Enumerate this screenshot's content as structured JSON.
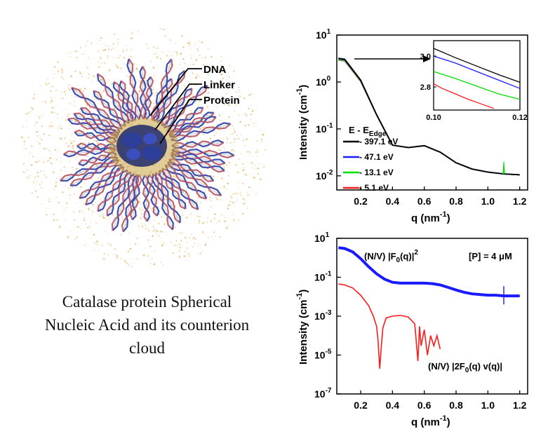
{
  "illustration": {
    "labels": [
      "DNA",
      "Linker",
      "Protein"
    ]
  },
  "caption": [
    "Catalase protein Spherical",
    "Nucleic Acid and its counterion",
    "cloud"
  ],
  "colors": {
    "black": "#000000",
    "blue": "#1a1aff",
    "green": "#00dd00",
    "red": "#ff1a1a",
    "dna_blue": "#3a4fb0",
    "dna_red": "#b24a5a",
    "ions": "#e8b25a",
    "protein": "#1f2a6b"
  },
  "chart_data": [
    {
      "type": "line",
      "xlabel": "q (nm-1)",
      "ylabel": "Intensity (cm-1)",
      "xscale": "linear",
      "yscale": "log",
      "xlim": [
        0.05,
        1.25
      ],
      "ylim": [
        0.005,
        10
      ],
      "xticks": [
        "0.2",
        "0.4",
        "0.6",
        "0.8",
        "1.0",
        "1.2"
      ],
      "yticks": [
        "10-2",
        "10-1",
        "100",
        "101"
      ],
      "legend_title": "E - EEdge",
      "legend_position": "bottom-left",
      "series": [
        {
          "name": "- 397.1 eV",
          "color": "#000000",
          "x": [
            0.06,
            0.1,
            0.2,
            0.3,
            0.4,
            0.5,
            0.6,
            0.7,
            0.8,
            0.9,
            1.0,
            1.1,
            1.2
          ],
          "y": [
            3.2,
            3.05,
            1.1,
            0.2,
            0.045,
            0.04,
            0.044,
            0.032,
            0.019,
            0.014,
            0.012,
            0.011,
            0.0105
          ]
        },
        {
          "name": "- 47.1 eV",
          "color": "#1a1aff",
          "x": [
            0.06,
            0.1,
            0.2,
            0.3,
            0.4,
            0.5,
            0.6,
            0.7,
            0.8,
            0.9,
            1.0,
            1.1,
            1.2
          ],
          "y": [
            3.15,
            2.98,
            1.08,
            0.2,
            0.045,
            0.04,
            0.044,
            0.032,
            0.019,
            0.014,
            0.012,
            0.011,
            0.0105
          ]
        },
        {
          "name": "- 13.1 eV",
          "color": "#00dd00",
          "x": [
            0.06,
            0.1,
            0.2,
            0.3,
            0.4,
            0.5,
            0.6,
            0.7,
            0.8,
            0.9,
            1.0,
            1.1,
            1.2
          ],
          "y": [
            3.0,
            2.88,
            1.05,
            0.2,
            0.045,
            0.04,
            0.044,
            0.032,
            0.019,
            0.014,
            0.012,
            0.011,
            0.0105
          ]
        },
        {
          "name": "- 5.1 eV",
          "color": "#ff1a1a",
          "x": [
            0.06,
            0.1,
            0.2,
            0.3,
            0.4,
            0.5,
            0.6,
            0.7,
            0.8,
            0.9,
            1.0,
            1.1,
            1.2
          ],
          "y": [
            2.95,
            2.82,
            1.03,
            0.2,
            0.045,
            0.04,
            0.044,
            0.032,
            0.019,
            0.014,
            0.012,
            0.011,
            0.0105
          ]
        }
      ],
      "inset": {
        "xlim": [
          0.1,
          0.12
        ],
        "ylim": [
          2.65,
          3.1
        ],
        "xticks": [
          "0.10",
          "0.12"
        ],
        "yticks": [
          "2.8",
          "3.0"
        ],
        "series": [
          {
            "name": "- 397.1 eV",
            "x": [
              0.1,
              0.105,
              0.11,
              0.115,
              0.12
            ],
            "y": [
              3.05,
              2.99,
              2.935,
              2.88,
              2.83
            ]
          },
          {
            "name": "- 47.1 eV",
            "x": [
              0.1,
              0.105,
              0.11,
              0.115,
              0.12
            ],
            "y": [
              3.0,
              2.955,
              2.9,
              2.845,
              2.79
            ]
          },
          {
            "name": "- 13.1 eV",
            "x": [
              0.1,
              0.105,
              0.11,
              0.115,
              0.12
            ],
            "y": [
              2.9,
              2.855,
              2.805,
              2.755,
              2.72
            ]
          },
          {
            "name": "- 5.1 eV",
            "x": [
              0.1,
              0.102,
              0.105,
              0.108,
              0.111,
              0.114
            ],
            "y": [
              2.82,
              2.79,
              2.755,
              2.72,
              2.69,
              2.66
            ]
          }
        ]
      }
    },
    {
      "type": "line",
      "xlabel": "q (nm-1)",
      "ylabel": "Intensity (cm-1)",
      "xscale": "linear",
      "yscale": "log",
      "xlim": [
        0.05,
        1.25
      ],
      "ylim": [
        1e-07,
        10
      ],
      "xticks": [
        "0.2",
        "0.4",
        "0.6",
        "0.8",
        "1.0",
        "1.2"
      ],
      "yticks": [
        "10-7",
        "10-5",
        "10-3",
        "10-1",
        "101"
      ],
      "annotation": "[P] = 4 μM",
      "series": [
        {
          "name": "(N/V) |F0(q)|2",
          "color": "#1a1aff",
          "x": [
            0.06,
            0.1,
            0.15,
            0.2,
            0.25,
            0.3,
            0.35,
            0.4,
            0.45,
            0.5,
            0.55,
            0.6,
            0.65,
            0.7,
            0.75,
            0.8,
            0.85,
            0.9,
            0.95,
            1.0,
            1.05,
            1.1,
            1.15,
            1.2
          ],
          "y": [
            3.3,
            3.0,
            2.0,
            0.9,
            0.35,
            0.15,
            0.08,
            0.055,
            0.05,
            0.05,
            0.05,
            0.05,
            0.047,
            0.04,
            0.03,
            0.022,
            0.017,
            0.014,
            0.013,
            0.012,
            0.012,
            0.011,
            0.011,
            0.011
          ]
        },
        {
          "name": "(N/V) |2F0(q) v(q)|",
          "color": "#ff1a1a",
          "x": [
            0.06,
            0.1,
            0.15,
            0.2,
            0.25,
            0.28,
            0.3,
            0.31,
            0.32,
            0.33,
            0.34,
            0.36,
            0.4,
            0.45,
            0.5,
            0.54,
            0.56,
            0.57,
            0.58,
            0.6,
            0.62,
            0.64,
            0.66,
            0.68,
            0.7
          ],
          "y": [
            0.045,
            0.04,
            0.028,
            0.012,
            0.0035,
            0.001,
            0.0003,
            5e-05,
            2e-06,
            3e-05,
            0.00025,
            0.0008,
            0.001,
            0.0011,
            0.0009,
            0.0004,
            5e-06,
            0.0003,
            3e-05,
            0.0002,
            1e-05,
            0.0001,
            3e-05,
            0.0001,
            2e-05
          ]
        }
      ]
    }
  ]
}
